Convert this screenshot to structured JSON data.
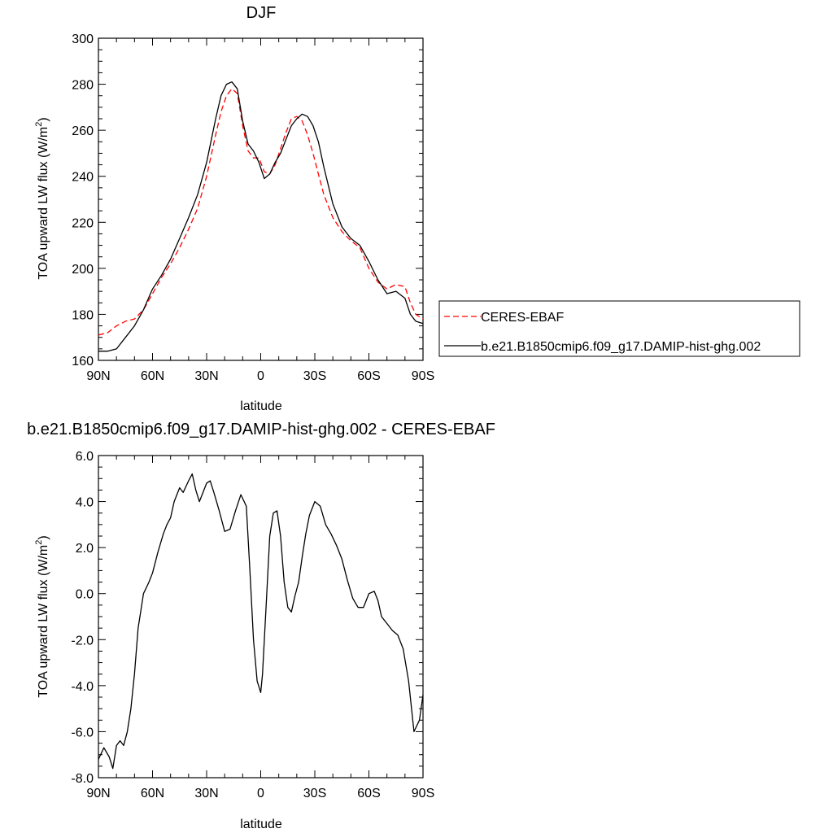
{
  "chart_data": [
    {
      "type": "line",
      "title": "DJF",
      "xlabel": "latitude",
      "ylabel": "TOA upward LW flux (W/m",
      "ylabel_sup": "2",
      "ylabel_close": ")",
      "xlim": [
        -90,
        90
      ],
      "ylim": [
        160,
        300
      ],
      "xticks": [
        -90,
        -60,
        -30,
        0,
        30,
        60,
        90
      ],
      "xtick_labels": [
        "90N",
        "60N",
        "30N",
        "0",
        "30S",
        "60S",
        "90S"
      ],
      "yticks": [
        160,
        180,
        200,
        220,
        240,
        260,
        280,
        300
      ],
      "ytick_labels": [
        "160",
        "180",
        "200",
        "220",
        "240",
        "260",
        "280",
        "300"
      ],
      "grid": false,
      "legend": {
        "placement": "right",
        "entries": [
          "CERES-EBAF",
          "b.e21.B1850cmip6.f09_g17.DAMIP-hist-ghg.002"
        ]
      },
      "series": [
        {
          "name": "CERES-EBAF",
          "color": "#ff0000",
          "dash": "dashed",
          "x": [
            -90,
            -85,
            -80,
            -75,
            -70,
            -65,
            -60,
            -55,
            -50,
            -45,
            -40,
            -35,
            -30,
            -25,
            -22,
            -19,
            -16,
            -13,
            -10,
            -7,
            -4,
            -1,
            2,
            5,
            8,
            11,
            14,
            17,
            20,
            23,
            26,
            29,
            32,
            35,
            40,
            45,
            50,
            55,
            60,
            65,
            70,
            75,
            80,
            83,
            86,
            90
          ],
          "y": [
            171,
            172,
            175,
            177,
            178,
            182,
            189,
            196,
            202,
            209,
            217,
            226,
            240,
            258,
            268,
            275,
            278,
            276,
            262,
            251,
            248,
            248,
            242,
            241,
            245,
            252,
            259,
            265,
            266,
            264,
            258,
            250,
            241,
            232,
            222,
            216,
            212,
            209,
            200,
            194,
            191,
            193,
            192,
            185,
            180,
            178
          ]
        },
        {
          "name": "b.e21.B1850cmip6.f09_g17.DAMIP-hist-ghg.002",
          "color": "#000000",
          "dash": "solid",
          "x": [
            -90,
            -85,
            -80,
            -75,
            -70,
            -65,
            -60,
            -55,
            -50,
            -45,
            -40,
            -35,
            -30,
            -25,
            -22,
            -19,
            -16,
            -13,
            -10,
            -7,
            -4,
            -1,
            2,
            5,
            8,
            11,
            14,
            17,
            20,
            23,
            26,
            29,
            32,
            35,
            40,
            45,
            50,
            55,
            60,
            65,
            70,
            75,
            80,
            83,
            86,
            90
          ],
          "y": [
            164,
            164,
            165,
            170,
            175,
            182,
            191,
            197,
            204,
            213,
            222,
            232,
            246,
            265,
            275,
            280,
            281,
            278,
            264,
            254,
            251,
            246,
            239,
            241,
            246,
            250,
            256,
            262,
            265,
            267,
            266,
            262,
            255,
            244,
            228,
            218,
            213,
            210,
            203,
            195,
            189,
            190,
            187,
            180,
            177,
            176
          ]
        }
      ]
    },
    {
      "type": "line",
      "title": "b.e21.B1850cmip6.f09_g17.DAMIP-hist-ghg.002 - CERES-EBAF",
      "xlabel": "latitude",
      "ylabel": "TOA upward LW flux (W/m",
      "ylabel_sup": "2",
      "ylabel_close": ")",
      "xlim": [
        -90,
        90
      ],
      "ylim": [
        -8,
        6
      ],
      "xticks": [
        -90,
        -60,
        -30,
        0,
        30,
        60,
        90
      ],
      "xtick_labels": [
        "90N",
        "60N",
        "30N",
        "0",
        "30S",
        "60S",
        "90S"
      ],
      "yticks": [
        -8,
        -6,
        -4,
        -2,
        0,
        2,
        4,
        6
      ],
      "ytick_labels": [
        "-8.0",
        "-6.0",
        "-4.0",
        "-2.0",
        "0.0",
        "2.0",
        "4.0",
        "6.0"
      ],
      "grid": false,
      "series": [
        {
          "color": "#000000",
          "dash": "solid",
          "x": [
            -90,
            -87,
            -84,
            -82,
            -80,
            -78,
            -76,
            -74,
            -72,
            -70,
            -68,
            -65,
            -62,
            -60,
            -57,
            -54,
            -52,
            -50,
            -48,
            -45,
            -43,
            -40,
            -38,
            -36,
            -34,
            -32,
            -30,
            -28,
            -26,
            -23,
            -20,
            -17,
            -14,
            -11,
            -8,
            -6,
            -4,
            -2,
            0,
            1,
            3,
            5,
            7,
            9,
            11,
            13,
            15,
            17,
            19,
            21,
            23,
            25,
            27,
            30,
            33,
            36,
            39,
            42,
            45,
            48,
            51,
            54,
            57,
            60,
            63,
            65,
            67,
            70,
            73,
            76,
            79,
            82,
            85,
            88,
            90
          ],
          "y": [
            -7.2,
            -6.7,
            -7.1,
            -7.6,
            -6.6,
            -6.4,
            -6.6,
            -6.0,
            -5.0,
            -3.5,
            -1.5,
            0.0,
            0.5,
            0.9,
            1.8,
            2.6,
            3.0,
            3.3,
            4.0,
            4.6,
            4.4,
            4.9,
            5.2,
            4.5,
            4.0,
            4.4,
            4.8,
            4.9,
            4.4,
            3.6,
            2.7,
            2.8,
            3.6,
            4.3,
            3.8,
            1.0,
            -2.0,
            -3.8,
            -4.3,
            -3.5,
            -0.5,
            2.5,
            3.5,
            3.6,
            2.5,
            0.5,
            -0.6,
            -0.8,
            -0.1,
            0.5,
            1.6,
            2.6,
            3.4,
            4.0,
            3.8,
            3.0,
            2.6,
            2.1,
            1.5,
            0.6,
            -0.2,
            -0.6,
            -0.6,
            0.0,
            0.1,
            -0.3,
            -1.0,
            -1.3,
            -1.6,
            -1.8,
            -2.4,
            -3.8,
            -6.0,
            -5.5,
            -4.4
          ]
        }
      ]
    }
  ]
}
